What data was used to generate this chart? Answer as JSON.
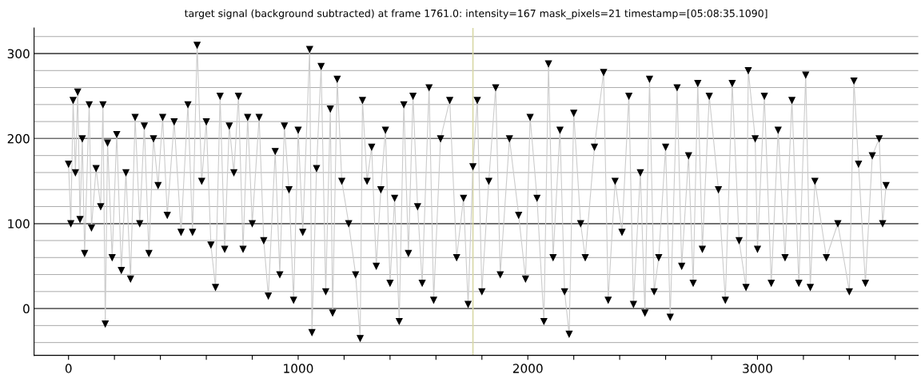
{
  "chart_data": {
    "type": "line",
    "title": "target signal (background subtracted) at frame 1761.0: intensity=167 mask_pixels=21 timestamp=[05:08:35.1090]",
    "x": [
      0,
      10,
      20,
      30,
      40,
      50,
      60,
      70,
      90,
      100,
      120,
      140,
      150,
      160,
      170,
      190,
      210,
      230,
      250,
      270,
      290,
      310,
      330,
      350,
      370,
      390,
      410,
      430,
      460,
      490,
      520,
      540,
      560,
      580,
      600,
      620,
      640,
      660,
      680,
      700,
      720,
      740,
      760,
      780,
      800,
      830,
      850,
      870,
      900,
      920,
      940,
      960,
      980,
      1000,
      1020,
      1050,
      1060,
      1080,
      1100,
      1120,
      1140,
      1150,
      1170,
      1190,
      1220,
      1250,
      1270,
      1280,
      1300,
      1320,
      1340,
      1360,
      1380,
      1400,
      1420,
      1440,
      1460,
      1480,
      1500,
      1520,
      1540,
      1570,
      1590,
      1620,
      1660,
      1690,
      1720,
      1740,
      1761,
      1780,
      1800,
      1830,
      1860,
      1880,
      1920,
      1960,
      1990,
      2010,
      2040,
      2070,
      2090,
      2110,
      2140,
      2160,
      2180,
      2200,
      2230,
      2250,
      2290,
      2330,
      2350,
      2380,
      2410,
      2440,
      2460,
      2490,
      2510,
      2530,
      2550,
      2570,
      2600,
      2620,
      2650,
      2670,
      2700,
      2720,
      2740,
      2760,
      2790,
      2830,
      2860,
      2890,
      2920,
      2950,
      2960,
      2990,
      3000,
      3030,
      3060,
      3090,
      3120,
      3150,
      3180,
      3210,
      3230,
      3250,
      3300,
      3350,
      3400,
      3420,
      3440,
      3470,
      3500,
      3530,
      3545,
      3560
    ],
    "series": [
      {
        "color": "#000000",
        "values": [
          170,
          100,
          245,
          160,
          255,
          105,
          200,
          65,
          240,
          95,
          165,
          120,
          240,
          -18,
          195,
          60,
          205,
          45,
          160,
          35,
          225,
          100,
          215,
          65,
          200,
          145,
          225,
          110,
          220,
          90,
          240,
          90,
          310,
          150,
          220,
          75,
          25,
          250,
          70,
          215,
          160,
          250,
          70,
          225,
          100,
          225,
          80,
          15,
          185,
          40,
          215,
          140,
          10,
          210,
          90,
          305,
          -28,
          165,
          285,
          20,
          235,
          -5,
          270,
          150,
          100,
          40,
          -35,
          245,
          150,
          190,
          50,
          140,
          210,
          30,
          130,
          -15,
          240,
          65,
          250,
          120,
          30,
          260,
          10,
          200,
          245,
          60,
          130,
          5,
          167,
          245,
          20,
          150,
          260,
          40,
          200,
          110,
          35,
          225,
          130,
          -15,
          288,
          60,
          210,
          20,
          -30,
          230,
          100,
          60,
          190,
          278,
          10,
          150,
          90,
          250,
          5,
          160,
          -5,
          270,
          20,
          60,
          190,
          -10,
          260,
          50,
          180,
          30,
          265,
          70,
          250,
          140,
          10,
          265,
          80,
          25,
          280,
          200,
          70,
          250,
          30,
          210,
          60,
          245,
          30,
          275,
          25,
          150,
          60,
          100,
          20,
          268,
          170,
          30,
          180,
          200,
          100,
          145
        ]
      }
    ],
    "xlim": [
      -150,
      3700
    ],
    "ylim": [
      -55,
      330
    ],
    "xticks": [
      0,
      {
        "value": 200,
        "label": null
      },
      {
        "value": 400,
        "label": null
      },
      {
        "value": 600,
        "label": null
      },
      {
        "value": 800,
        "label": null
      },
      1000,
      {
        "value": 1200,
        "label": null
      },
      {
        "value": 1400,
        "label": null
      },
      {
        "value": 1600,
        "label": null
      },
      {
        "value": 1800,
        "label": null
      },
      2000,
      {
        "value": 2200,
        "label": null
      },
      {
        "value": 2400,
        "label": null
      },
      {
        "value": 2600,
        "label": null
      },
      {
        "value": 2800,
        "label": null
      },
      3000,
      {
        "value": 3200,
        "label": null
      },
      {
        "value": 3400,
        "label": null
      },
      {
        "value": 3600,
        "label": null
      }
    ],
    "yticks": [
      {
        "value": -40,
        "label": null
      },
      {
        "value": -20,
        "label": null
      },
      0,
      {
        "value": 20,
        "label": null
      },
      {
        "value": 40,
        "label": null
      },
      {
        "value": 60,
        "label": null
      },
      {
        "value": 80,
        "label": null
      },
      100,
      {
        "value": 120,
        "label": null
      },
      {
        "value": 140,
        "label": null
      },
      {
        "value": 160,
        "label": null
      },
      {
        "value": 180,
        "label": null
      },
      200,
      {
        "value": 220,
        "label": null
      },
      {
        "value": 240,
        "label": null
      },
      {
        "value": 260,
        "label": null
      },
      {
        "value": 280,
        "label": null
      },
      300,
      {
        "value": 320,
        "label": null
      }
    ],
    "grid": "y",
    "marker": "triangle",
    "line_style": "solid",
    "ref_lines": [
      {
        "axis": "x",
        "value": 1761,
        "color": "#d8d8a8"
      }
    ]
  }
}
